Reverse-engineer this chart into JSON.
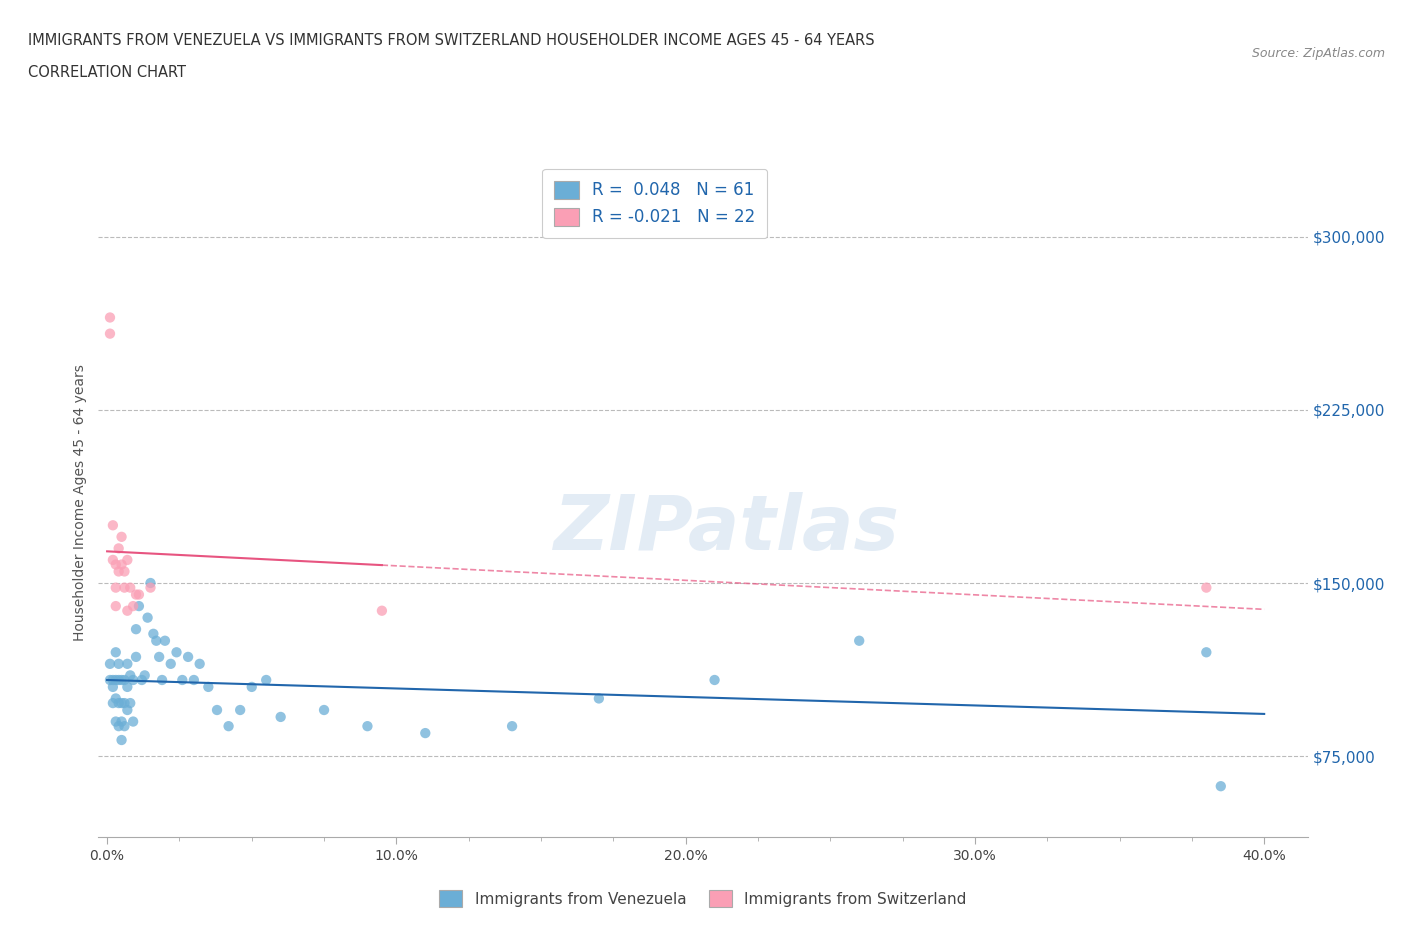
{
  "title_line1": "IMMIGRANTS FROM VENEZUELA VS IMMIGRANTS FROM SWITZERLAND HOUSEHOLDER INCOME AGES 45 - 64 YEARS",
  "title_line2": "CORRELATION CHART",
  "source_text": "Source: ZipAtlas.com",
  "ylabel": "Householder Income Ages 45 - 64 years",
  "xlim": [
    -0.003,
    0.415
  ],
  "ylim": [
    40000,
    330000
  ],
  "yticks": [
    75000,
    150000,
    225000,
    300000
  ],
  "ytick_labels": [
    "$75,000",
    "$150,000",
    "$225,000",
    "$300,000"
  ],
  "xtick_labels": [
    "0.0%",
    "",
    "",
    "",
    "",
    "",
    "",
    "",
    "10.0%",
    "",
    "",
    "",
    "",
    "",
    "",
    "",
    "20.0%",
    "",
    "",
    "",
    "",
    "",
    "",
    "",
    "30.0%",
    "",
    "",
    "",
    "",
    "",
    "",
    "",
    "40.0%"
  ],
  "xticks": [
    0.0,
    0.0125,
    0.025,
    0.0375,
    0.05,
    0.0625,
    0.075,
    0.0875,
    0.1,
    0.1125,
    0.125,
    0.1375,
    0.15,
    0.1625,
    0.175,
    0.1875,
    0.2,
    0.2125,
    0.225,
    0.2375,
    0.25,
    0.2625,
    0.275,
    0.2875,
    0.3,
    0.3125,
    0.325,
    0.3375,
    0.35,
    0.3625,
    0.375,
    0.3875,
    0.4
  ],
  "watermark": "ZIPatlas",
  "legend_R1": "R =  0.048",
  "legend_N1": "N = 61",
  "legend_R2": "R = -0.021",
  "legend_N2": "N = 22",
  "color_venezuela": "#6baed6",
  "color_switzerland": "#fa9fb5",
  "trendline_color_venezuela": "#2166ac",
  "trendline_color_switzerland": "#e75480",
  "venezuela_x": [
    0.001,
    0.001,
    0.002,
    0.002,
    0.002,
    0.003,
    0.003,
    0.003,
    0.003,
    0.004,
    0.004,
    0.004,
    0.004,
    0.005,
    0.005,
    0.005,
    0.005,
    0.006,
    0.006,
    0.006,
    0.007,
    0.007,
    0.007,
    0.008,
    0.008,
    0.009,
    0.009,
    0.01,
    0.01,
    0.011,
    0.012,
    0.013,
    0.014,
    0.015,
    0.016,
    0.017,
    0.018,
    0.019,
    0.02,
    0.022,
    0.024,
    0.026,
    0.028,
    0.03,
    0.032,
    0.035,
    0.038,
    0.042,
    0.046,
    0.05,
    0.055,
    0.06,
    0.075,
    0.09,
    0.11,
    0.14,
    0.17,
    0.21,
    0.26,
    0.38,
    0.385
  ],
  "venezuela_y": [
    115000,
    108000,
    108000,
    105000,
    98000,
    120000,
    108000,
    100000,
    90000,
    115000,
    108000,
    98000,
    88000,
    108000,
    98000,
    90000,
    82000,
    108000,
    98000,
    88000,
    115000,
    105000,
    95000,
    110000,
    98000,
    108000,
    90000,
    130000,
    118000,
    140000,
    108000,
    110000,
    135000,
    150000,
    128000,
    125000,
    118000,
    108000,
    125000,
    115000,
    120000,
    108000,
    118000,
    108000,
    115000,
    105000,
    95000,
    88000,
    95000,
    105000,
    108000,
    92000,
    95000,
    88000,
    85000,
    88000,
    100000,
    108000,
    125000,
    120000,
    62000
  ],
  "switzerland_x": [
    0.001,
    0.001,
    0.002,
    0.002,
    0.003,
    0.003,
    0.003,
    0.004,
    0.004,
    0.005,
    0.005,
    0.006,
    0.006,
    0.007,
    0.007,
    0.008,
    0.009,
    0.01,
    0.011,
    0.015,
    0.095,
    0.38
  ],
  "switzerland_y": [
    265000,
    258000,
    175000,
    160000,
    158000,
    148000,
    140000,
    165000,
    155000,
    170000,
    158000,
    155000,
    148000,
    160000,
    138000,
    148000,
    140000,
    145000,
    145000,
    148000,
    138000,
    148000
  ]
}
